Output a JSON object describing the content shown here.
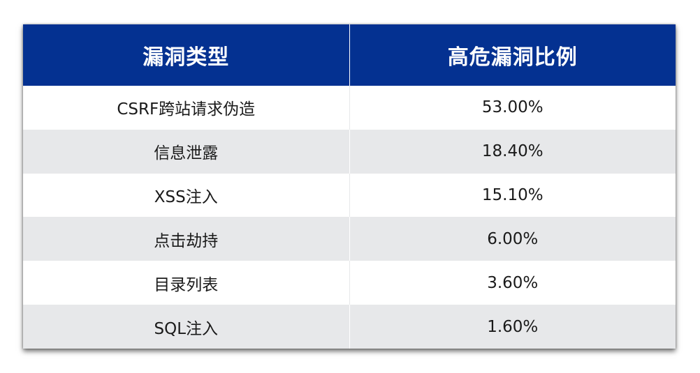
{
  "table": {
    "headers": [
      "漏洞类型",
      "高危漏洞比例"
    ],
    "rows": [
      {
        "type": "CSRF跨站请求伪造",
        "ratio": "53.00%"
      },
      {
        "type": "信息泄露",
        "ratio": "18.40%"
      },
      {
        "type": "XSS注入",
        "ratio": "15.10%"
      },
      {
        "type": "点击劫持",
        "ratio": "6.00%"
      },
      {
        "type": "目录列表",
        "ratio": "3.60%"
      },
      {
        "type": "SQL注入",
        "ratio": "1.60%"
      }
    ]
  },
  "colors": {
    "header_bg": "#043191",
    "header_text": "#ffffff",
    "row_alt_bg": "#e7e8ea",
    "row_bg": "#ffffff"
  }
}
